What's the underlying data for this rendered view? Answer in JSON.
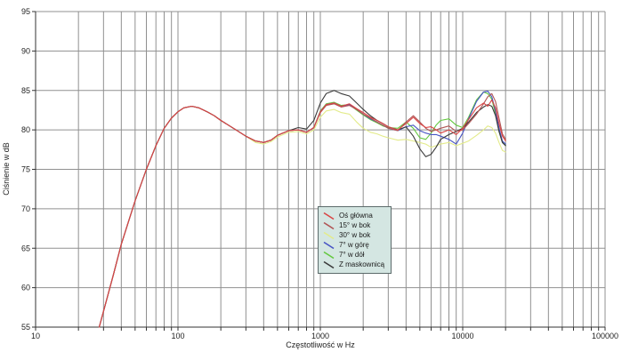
{
  "chart_data": {
    "type": "line",
    "title": "",
    "xlabel": "Częstotliwość w Hz",
    "ylabel": "Ciśnienie w dB",
    "x_scale": "log",
    "xlim": [
      10,
      100000
    ],
    "ylim": [
      55,
      95
    ],
    "y_tick_step": 5,
    "grid": true,
    "legend_position": "center-of-plot",
    "y_ticks": [
      95,
      90,
      85,
      80,
      75,
      70,
      65,
      60,
      55
    ],
    "x_ticks": [
      10,
      100,
      1000,
      10000,
      100000
    ],
    "x_tick_labels": [
      "10",
      "100",
      "1000",
      "10000",
      "100000"
    ],
    "x": [
      28,
      30,
      35,
      40,
      50,
      60,
      70,
      80,
      90,
      100,
      110,
      125,
      140,
      160,
      180,
      200,
      250,
      300,
      350,
      400,
      450,
      500,
      600,
      700,
      800,
      900,
      1000,
      1100,
      1250,
      1400,
      1600,
      1800,
      2000,
      2250,
      2500,
      2750,
      3000,
      3500,
      4000,
      4500,
      5000,
      5500,
      6000,
      6500,
      7000,
      8000,
      9000,
      10000,
      11000,
      12500,
      14000,
      15000,
      16000,
      17000,
      18000,
      19000,
      20000
    ],
    "series": [
      {
        "id": "os-glowna",
        "name": "Oś główna",
        "color": "#d94545",
        "values": [
          55.0,
          57.0,
          61.5,
          65.5,
          71.0,
          75.0,
          78.0,
          80.2,
          81.5,
          82.3,
          82.8,
          83.0,
          82.8,
          82.3,
          81.8,
          81.2,
          80.1,
          79.2,
          78.6,
          78.4,
          78.7,
          79.3,
          79.9,
          80.0,
          79.7,
          80.3,
          82.3,
          83.2,
          83.4,
          83.0,
          83.3,
          82.7,
          82.2,
          81.6,
          81.2,
          80.8,
          80.4,
          80.0,
          80.8,
          81.6,
          80.8,
          80.3,
          80.4,
          80.0,
          79.6,
          80.0,
          79.4,
          80.2,
          81.3,
          82.8,
          83.4,
          83.0,
          83.8,
          82.8,
          80.8,
          79.2,
          78.6
        ]
      },
      {
        "id": "15-w-bok",
        "name": "15° w bok",
        "color": "#b05555",
        "values": [
          55.0,
          57.0,
          61.5,
          65.5,
          71.0,
          75.0,
          78.0,
          80.2,
          81.5,
          82.3,
          82.8,
          83.0,
          82.8,
          82.3,
          81.8,
          81.2,
          80.1,
          79.2,
          78.6,
          78.4,
          78.7,
          79.3,
          79.9,
          80.0,
          79.7,
          80.3,
          82.2,
          83.1,
          83.3,
          82.9,
          83.1,
          82.6,
          82.0,
          81.5,
          81.0,
          80.6,
          80.2,
          79.9,
          81.0,
          81.8,
          81.0,
          80.2,
          79.8,
          80.0,
          80.2,
          80.5,
          79.8,
          80.0,
          80.8,
          82.0,
          83.3,
          84.2,
          84.6,
          83.6,
          81.5,
          79.5,
          78.8
        ]
      },
      {
        "id": "30-w-bok",
        "name": "30° w bok",
        "color": "#e3eb8a",
        "values": [
          55.0,
          57.0,
          61.5,
          65.5,
          71.0,
          75.0,
          78.0,
          80.2,
          81.5,
          82.3,
          82.8,
          83.0,
          82.8,
          82.3,
          81.8,
          81.2,
          80.1,
          79.2,
          78.4,
          78.2,
          78.5,
          79.1,
          79.7,
          79.8,
          79.5,
          80.0,
          81.6,
          82.4,
          82.6,
          82.2,
          82.0,
          81.0,
          80.2,
          79.7,
          79.5,
          79.2,
          79.0,
          78.7,
          78.8,
          78.6,
          78.4,
          78.2,
          77.8,
          78.0,
          78.2,
          78.4,
          78.0,
          78.3,
          78.6,
          79.3,
          80.0,
          80.5,
          80.3,
          79.6,
          78.4,
          77.4,
          77.2
        ]
      },
      {
        "id": "7-w-gore",
        "name": "7° w górę",
        "color": "#4753c4",
        "values": [
          55.0,
          57.0,
          61.5,
          65.5,
          71.0,
          75.0,
          78.0,
          80.2,
          81.5,
          82.3,
          82.8,
          83.0,
          82.8,
          82.3,
          81.8,
          81.2,
          80.1,
          79.2,
          78.6,
          78.4,
          78.7,
          79.3,
          79.9,
          80.0,
          79.7,
          80.3,
          82.3,
          83.2,
          83.4,
          83.0,
          83.2,
          82.6,
          82.0,
          81.4,
          81.0,
          80.6,
          80.2,
          79.9,
          80.4,
          80.6,
          79.9,
          79.6,
          79.4,
          79.4,
          79.2,
          78.8,
          78.2,
          79.6,
          81.4,
          83.6,
          84.8,
          84.9,
          84.2,
          82.4,
          80.2,
          78.6,
          78.2
        ]
      },
      {
        "id": "7-w-dol",
        "name": "7° w dół",
        "color": "#63c83f",
        "values": [
          55.0,
          57.0,
          61.5,
          65.5,
          71.0,
          75.0,
          78.0,
          80.2,
          81.5,
          82.3,
          82.8,
          83.0,
          82.8,
          82.3,
          81.8,
          81.2,
          80.1,
          79.2,
          78.6,
          78.4,
          78.7,
          79.3,
          79.9,
          80.0,
          79.7,
          80.3,
          82.4,
          83.3,
          83.5,
          83.1,
          83.2,
          82.5,
          81.9,
          81.3,
          80.9,
          80.5,
          80.3,
          80.2,
          81.0,
          80.2,
          79.0,
          78.8,
          79.6,
          80.6,
          81.2,
          81.4,
          80.6,
          80.3,
          81.6,
          83.8,
          84.8,
          84.6,
          83.9,
          82.0,
          79.8,
          78.4,
          78.0
        ]
      },
      {
        "id": "z-maskownica",
        "name": "Z maskownicą",
        "color": "#3a3a3a",
        "values": [
          55.0,
          57.0,
          61.5,
          65.5,
          71.0,
          75.0,
          78.0,
          80.2,
          81.5,
          82.3,
          82.8,
          83.0,
          82.8,
          82.3,
          81.8,
          81.2,
          80.1,
          79.2,
          78.6,
          78.4,
          78.7,
          79.3,
          79.9,
          80.3,
          80.1,
          81.2,
          83.4,
          84.6,
          85.0,
          84.6,
          84.3,
          83.4,
          82.6,
          81.8,
          81.2,
          80.8,
          80.4,
          80.0,
          80.4,
          79.2,
          77.6,
          76.6,
          76.9,
          77.8,
          78.8,
          79.4,
          79.8,
          80.2,
          81.0,
          82.2,
          82.9,
          83.2,
          83.0,
          81.8,
          79.8,
          78.4,
          78.0
        ]
      }
    ],
    "draw_order": [
      2,
      4,
      3,
      5,
      1,
      0
    ],
    "colors": {
      "background": "#ffffff",
      "grid": "#909090",
      "axis": "#333333",
      "text": "#1f1f1f",
      "legend_bg": "#d4e6e2",
      "legend_border": "#5c6b6b"
    }
  }
}
